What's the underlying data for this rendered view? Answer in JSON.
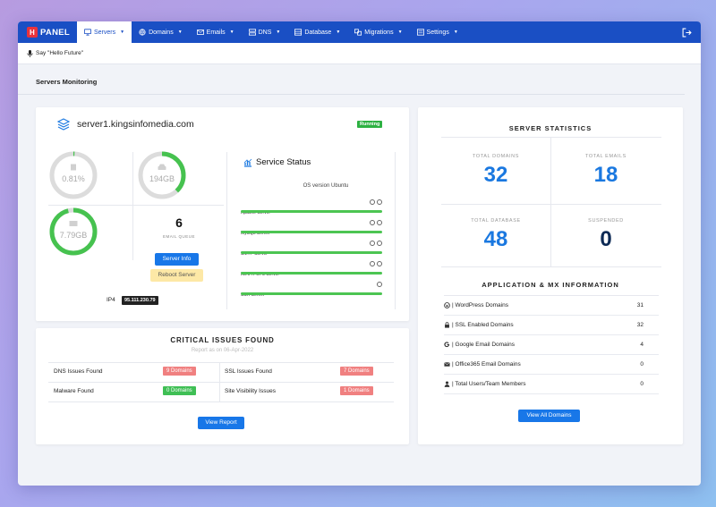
{
  "app": {
    "logo_letter": "H",
    "logo_text": "PANEL"
  },
  "nav": [
    {
      "label": "Servers",
      "icon": "monitor-icon"
    },
    {
      "label": "Domains",
      "icon": "globe-icon"
    },
    {
      "label": "Emails",
      "icon": "email-icon"
    },
    {
      "label": "DNS",
      "icon": "dns-icon"
    },
    {
      "label": "Database",
      "icon": "database-icon"
    },
    {
      "label": "Migrations",
      "icon": "migrations-icon"
    },
    {
      "label": "Settings",
      "icon": "settings-icon"
    }
  ],
  "voice": {
    "label": "Say \"Hello Future\""
  },
  "page": {
    "title": "Servers Monitoring"
  },
  "server": {
    "name": "server1.kingsinfomedia.com",
    "status": "Running",
    "cpu": {
      "label": "0.81%",
      "level": 0.0081
    },
    "disk": {
      "label": "194GB",
      "level": 0.38
    },
    "ram": {
      "label": "7.79GB",
      "level": 0.96
    },
    "email_queue": {
      "value": "6",
      "label": "EMAIL QUEUE"
    },
    "server_info_label": "Server Info",
    "reboot_label": "Reboot Server",
    "ip_label": "IP4",
    "ip_value": "95.111.230.79"
  },
  "service_status": {
    "title": "Service Status",
    "os": "OS version  Ubuntu",
    "services": [
      {
        "name": "Apache Server"
      },
      {
        "name": "MySQL Server"
      },
      {
        "name": "SMTP Server"
      },
      {
        "name": "IMAP/POP3 Server"
      },
      {
        "name": "SSH Server"
      }
    ]
  },
  "issues": {
    "title": "CRITICAL ISSUES FOUND",
    "subtitle": "Report as on 06-Apr-2022",
    "items": [
      {
        "label": "DNS Issues Found",
        "badge": "9 Domains",
        "color": "#f08080"
      },
      {
        "label": "SSL Issues Found",
        "badge": "7 Domains",
        "color": "#f08080"
      },
      {
        "label": "Malware Found",
        "badge": "0 Domains",
        "color": "#3fbf55"
      },
      {
        "label": "Site Visibility Issues",
        "badge": "1 Domains",
        "color": "#f08080"
      }
    ],
    "view_report": "View Report"
  },
  "stats": {
    "title": "SERVER STATISTICS",
    "total_domains": {
      "label": "TOTAL DOMAINS",
      "value": "32"
    },
    "total_emails": {
      "label": "TOTAL EMAILS",
      "value": "18"
    },
    "total_database": {
      "label": "TOTAL DATABASE",
      "value": "48"
    },
    "suspended": {
      "label": "SUSPENDED",
      "value": "0"
    },
    "app_title": "APPLICATION & MX INFORMATION",
    "apps": [
      {
        "label": "| WordPress Domains",
        "value": "31",
        "icon": "wordpress-icon"
      },
      {
        "label": "| SSL Enabled Domains",
        "value": "32",
        "icon": "lock-icon"
      },
      {
        "label": "| Google Email Domains",
        "value": "4",
        "icon": "google-icon"
      },
      {
        "label": "| Office365 Email Domains",
        "value": "0",
        "icon": "envelope-icon"
      },
      {
        "label": "| Total Users/Team Members",
        "value": "0",
        "icon": "user-icon"
      }
    ],
    "view_all": "View All Domains"
  },
  "colors": {
    "primary": "#1a4fc4",
    "accent_blue": "#1877e8",
    "green": "#4cc552",
    "red_badge": "#f08080"
  }
}
